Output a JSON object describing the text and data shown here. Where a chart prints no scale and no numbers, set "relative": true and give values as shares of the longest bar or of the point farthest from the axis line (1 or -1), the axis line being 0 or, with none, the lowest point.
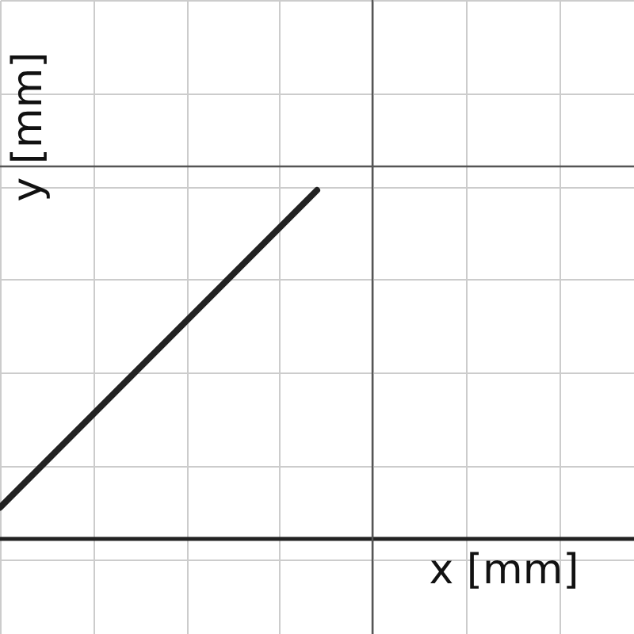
{
  "chart_data": {
    "type": "line",
    "relative": true,
    "categories": [
      null,
      null
    ],
    "series": [
      {
        "color": "#222222",
        "values": [
          0.09,
          1
        ]
      }
    ],
    "xlabel": "x [mm]",
    "ylabel": "y [mm]",
    "grid": true,
    "tick_labels": false,
    "marker": "none",
    "line_style": "solid"
  }
}
